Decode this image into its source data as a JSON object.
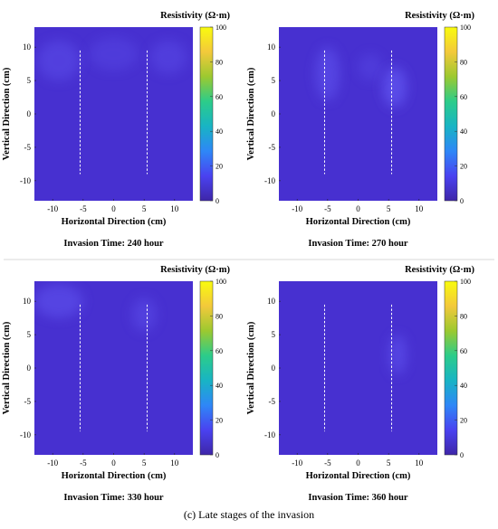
{
  "figure_caption": "(c) Late stages of the invasion",
  "colors": {
    "field": "#4730d0",
    "anomaly": "#5a4be8",
    "electrode_line": "#ffffff",
    "divider": "#d9d9d9",
    "colormap": [
      "#3e26a8",
      "#4a42f0",
      "#2e87f7",
      "#18b4c4",
      "#2ccc8a",
      "#9cc930",
      "#f3c93b",
      "#f9fb0e"
    ]
  },
  "chart_data": [
    {
      "type": "heatmap",
      "title": "Invasion Time: 240 hour",
      "xlabel": "Horizontal Direction (cm)",
      "ylabel": "Vertical Direction (cm)",
      "colorbar_label": "Resistivity (Ω·m)",
      "xlim": [
        -13,
        13
      ],
      "ylim": [
        -13,
        13
      ],
      "xticks": [
        -10,
        -5,
        0,
        5,
        10
      ],
      "yticks": [
        -10,
        -5,
        0,
        5,
        10
      ],
      "clim": [
        0,
        100
      ],
      "cticks": [
        0,
        20,
        40,
        60,
        80,
        100
      ],
      "electrode_lines_x": [
        -5.5,
        5.5
      ],
      "electrode_lines_y": [
        -9,
        9.5
      ],
      "background_value": 5,
      "anomalies": [
        {
          "x": -9,
          "y": 8,
          "rx": 3.5,
          "ry": 3,
          "value": 12
        },
        {
          "x": 0,
          "y": 9,
          "rx": 4,
          "ry": 2.5,
          "value": 10
        },
        {
          "x": 9,
          "y": 8.5,
          "rx": 3,
          "ry": 2.5,
          "value": 11
        }
      ]
    },
    {
      "type": "heatmap",
      "title": "Invasion Time: 270 hour",
      "xlabel": "Horizontal Direction (cm)",
      "ylabel": "Vertical Direction (cm)",
      "colorbar_label": "Resistivity (Ω·m)",
      "xlim": [
        -13,
        13
      ],
      "ylim": [
        -13,
        13
      ],
      "xticks": [
        -10,
        -5,
        0,
        5,
        10
      ],
      "yticks": [
        -10,
        -5,
        0,
        5,
        10
      ],
      "clim": [
        0,
        100
      ],
      "cticks": [
        0,
        20,
        40,
        60,
        80,
        100
      ],
      "electrode_lines_x": [
        -5.5,
        5.5
      ],
      "electrode_lines_y": [
        -9,
        9.5
      ],
      "background_value": 5,
      "anomalies": [
        {
          "x": -5,
          "y": 6,
          "rx": 2,
          "ry": 4,
          "value": 14
        },
        {
          "x": 6,
          "y": 4,
          "rx": 2,
          "ry": 3,
          "value": 18
        },
        {
          "x": 2,
          "y": 7,
          "rx": 2,
          "ry": 2,
          "value": 10
        }
      ]
    },
    {
      "type": "heatmap",
      "title": "Invasion Time: 330 hour",
      "xlabel": "Horizontal Direction (cm)",
      "ylabel": "Vertical Direction (cm)",
      "colorbar_label": "Resistivity (Ω·m)",
      "xlim": [
        -13,
        13
      ],
      "ylim": [
        -13,
        13
      ],
      "xticks": [
        -10,
        -5,
        0,
        5,
        10
      ],
      "yticks": [
        -10,
        -5,
        0,
        5,
        10
      ],
      "clim": [
        0,
        100
      ],
      "cticks": [
        0,
        20,
        40,
        60,
        80,
        100
      ],
      "electrode_lines_x": [
        -5.5,
        5.5
      ],
      "electrode_lines_y": [
        -9.5,
        9.5
      ],
      "background_value": 5,
      "anomalies": [
        {
          "x": -9,
          "y": 10,
          "rx": 4,
          "ry": 2.5,
          "value": 14
        },
        {
          "x": 5,
          "y": 8,
          "rx": 2,
          "ry": 2.5,
          "value": 12
        }
      ]
    },
    {
      "type": "heatmap",
      "title": "Invasion Time: 360 hour",
      "xlabel": "Horizontal Direction (cm)",
      "ylabel": "Vertical Direction (cm)",
      "colorbar_label": "Resistivity (Ω·m)",
      "xlim": [
        -13,
        13
      ],
      "ylim": [
        -13,
        13
      ],
      "xticks": [
        -10,
        -5,
        0,
        5,
        10
      ],
      "yticks": [
        -10,
        -5,
        0,
        5,
        10
      ],
      "clim": [
        0,
        100
      ],
      "cticks": [
        0,
        20,
        40,
        60,
        80,
        100
      ],
      "electrode_lines_x": [
        -5.5,
        5.5
      ],
      "electrode_lines_y": [
        -9.5,
        9.5
      ],
      "background_value": 5,
      "anomalies": [
        {
          "x": 6.5,
          "y": 2,
          "rx": 1.5,
          "ry": 3,
          "value": 14
        }
      ]
    }
  ]
}
